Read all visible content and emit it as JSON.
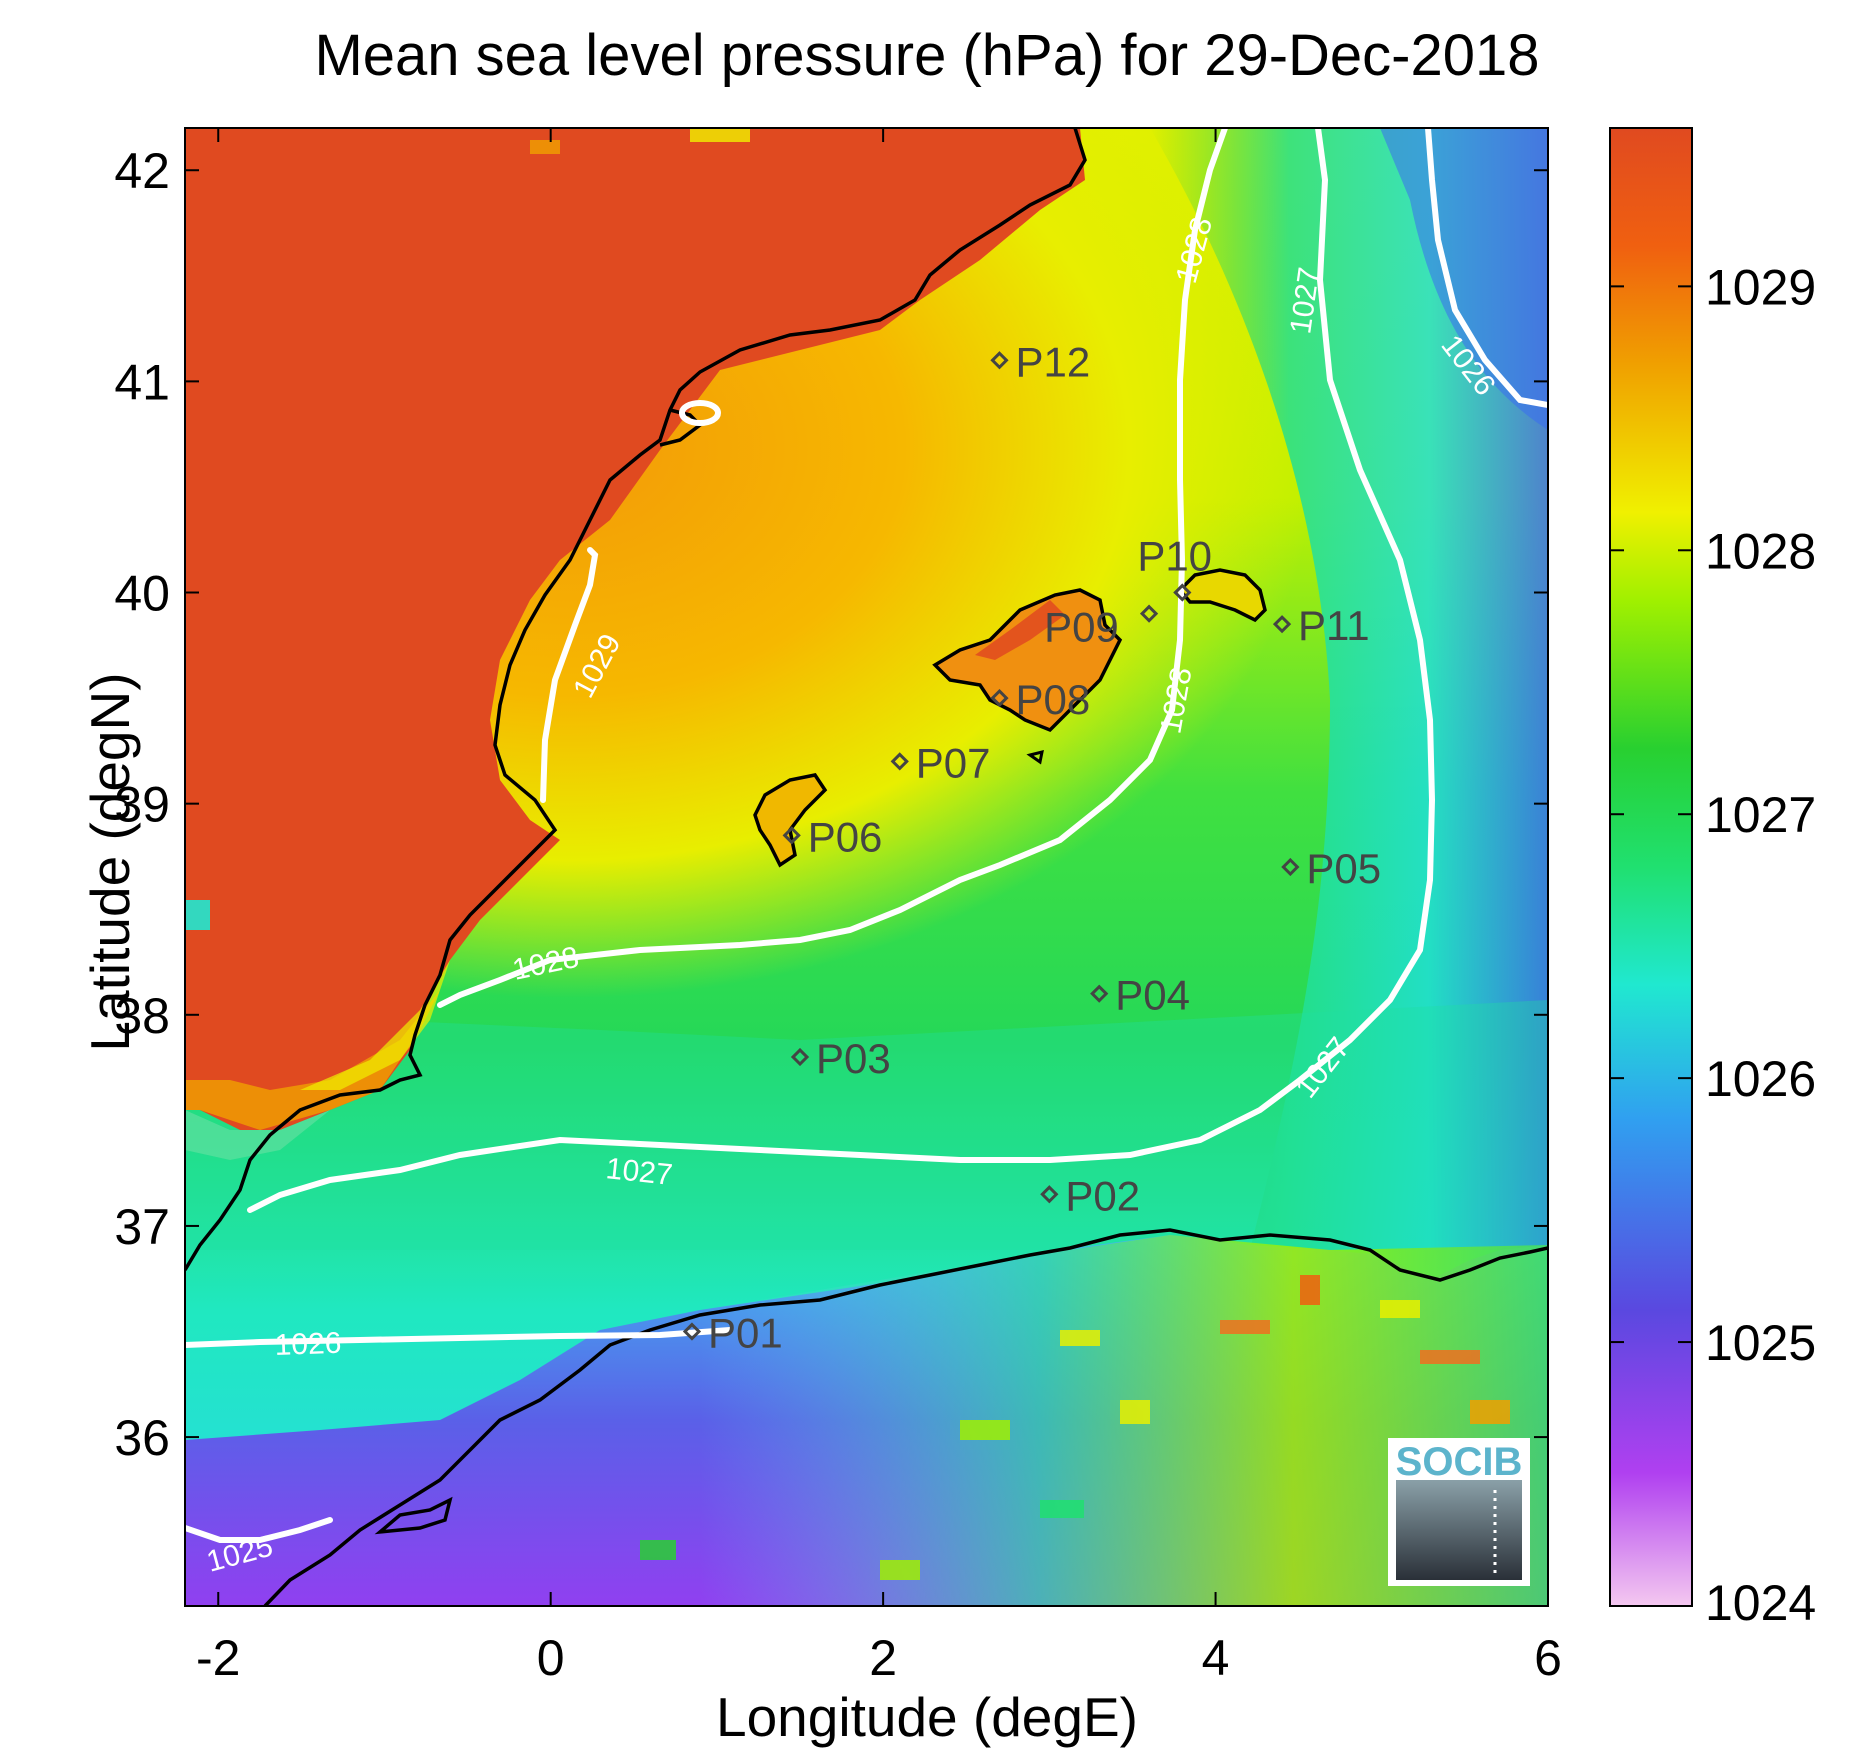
{
  "title": "Mean sea level pressure (hPa) for 29-Dec-2018",
  "xlabel": "Longitude (degE)",
  "ylabel": "Latitude (degN)",
  "x_ticks": [
    "-2",
    "0",
    "2",
    "4",
    "6"
  ],
  "y_ticks": [
    "36",
    "37",
    "38",
    "39",
    "40",
    "41",
    "42"
  ],
  "colorbar_ticks": [
    "1024",
    "1025",
    "1026",
    "1027",
    "1028",
    "1029"
  ],
  "colorbar_colors": [
    "#f4c8f0",
    "#b040f0",
    "#5a48e0",
    "#30a0f0",
    "#20e8d0",
    "#20e070",
    "#28d030",
    "#a0f000",
    "#f0f000",
    "#f0a000",
    "#f06010",
    "#e04a20"
  ],
  "logo_text": "SOCIB",
  "contour_labels": [
    "1029",
    "1028",
    "1028",
    "1028",
    "1027",
    "1027",
    "1027",
    "1026",
    "1026",
    "1025"
  ],
  "stations": [
    {
      "id": "P01",
      "lon": 0.85,
      "lat": 36.5
    },
    {
      "id": "P02",
      "lon": 3.0,
      "lat": 37.15
    },
    {
      "id": "P03",
      "lon": 1.5,
      "lat": 37.8
    },
    {
      "id": "P04",
      "lon": 3.3,
      "lat": 38.1
    },
    {
      "id": "P05",
      "lon": 4.45,
      "lat": 38.7
    },
    {
      "id": "P06",
      "lon": 1.45,
      "lat": 38.85
    },
    {
      "id": "P07",
      "lon": 2.1,
      "lat": 39.2
    },
    {
      "id": "P08",
      "lon": 2.7,
      "lat": 39.5
    },
    {
      "id": "P09",
      "lon": 3.6,
      "lat": 39.9
    },
    {
      "id": "P10",
      "lon": 3.8,
      "lat": 40.0
    },
    {
      "id": "P11",
      "lon": 4.4,
      "lat": 39.85
    },
    {
      "id": "P12",
      "lon": 2.7,
      "lat": 41.1
    }
  ],
  "chart_data": {
    "type": "heatmap",
    "title": "Mean sea level pressure (hPa) for 29-Dec-2018",
    "xlabel": "Longitude (degE)",
    "ylabel": "Latitude (degN)",
    "xlim": [
      -2.2,
      6.0
    ],
    "ylim": [
      35.2,
      42.2
    ],
    "colorbar_range": [
      1024,
      1029.6
    ],
    "colorbar_label": "hPa",
    "contour_levels": [
      1025,
      1026,
      1027,
      1028,
      1029
    ],
    "stations": [
      "P01",
      "P02",
      "P03",
      "P04",
      "P05",
      "P06",
      "P07",
      "P08",
      "P09",
      "P10",
      "P11",
      "P12"
    ]
  }
}
